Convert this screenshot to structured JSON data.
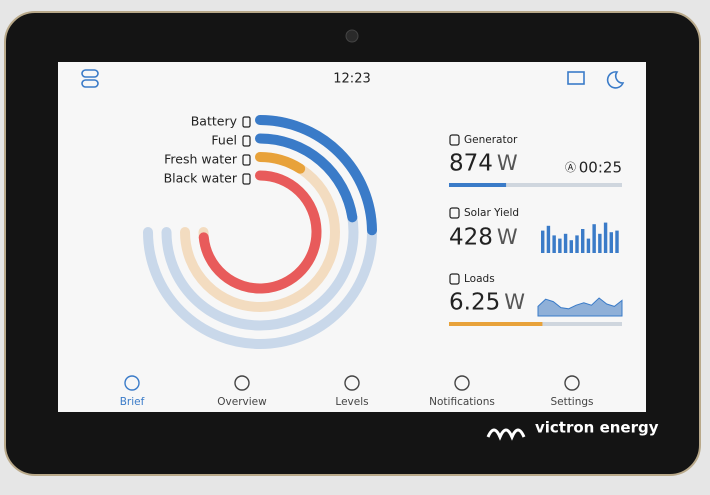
{
  "status_bar": {
    "time": "12:23"
  },
  "tanks": [
    {
      "label": "Battery",
      "level": 33,
      "color": "#3a7bc8",
      "track": "#c9d8ea"
    },
    {
      "label": "Fuel",
      "level": 30,
      "color": "#3a7bc8",
      "track": "#c9d8ea"
    },
    {
      "label": "Fresh water",
      "level": 12,
      "color": "#e8a23a",
      "track": "#f3dcc0"
    },
    {
      "label": "Black water",
      "level": 98,
      "color": "#e85b5b",
      "track": "#f3dcc0"
    }
  ],
  "widgets": {
    "generator": {
      "title": "Generator",
      "value": "874",
      "unit": "W",
      "runtime": "00:25",
      "progress": 33
    },
    "solar": {
      "title": "Solar Yield",
      "value": "428",
      "unit": "W",
      "history": [
        70,
        85,
        55,
        45,
        60,
        40,
        55,
        75,
        45,
        90,
        60,
        95,
        65,
        70
      ]
    },
    "loads": {
      "title": "Loads",
      "value": "6.25",
      "unit": "W",
      "history": [
        40,
        70,
        60,
        35,
        30,
        45,
        55,
        45,
        75,
        50,
        40,
        65
      ],
      "progress": 54
    }
  },
  "nav": [
    "Brief",
    "Overview",
    "Levels",
    "Notifications",
    "Settings"
  ],
  "brand": "victron energy"
}
